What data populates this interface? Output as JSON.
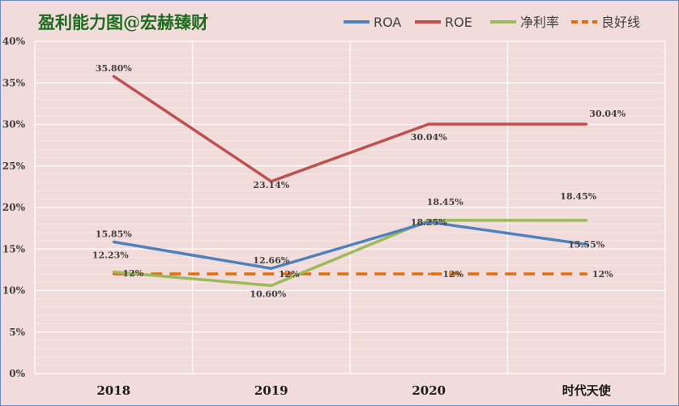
{
  "chart_data": {
    "type": "line",
    "title": "盈利能力图@宏赫臻财",
    "categories": [
      "2018",
      "2019",
      "2020",
      "时代天使"
    ],
    "ylim": [
      0,
      40
    ],
    "ytick_labels": [
      "0%",
      "5%",
      "10%",
      "15%",
      "20%",
      "25%",
      "30%",
      "35%",
      "40%"
    ],
    "grid": true,
    "legend_position": "top-right",
    "series": [
      {
        "name": "ROA",
        "color": "#4f81bd",
        "dashed": false,
        "values": [
          15.85,
          12.66,
          18.25,
          15.55
        ],
        "labels": [
          "15.85%",
          "12.66%",
          "18.25%",
          "15.55%"
        ]
      },
      {
        "name": "ROE",
        "color": "#c0504d",
        "dashed": false,
        "values": [
          35.8,
          23.14,
          30.04,
          30.04
        ],
        "labels": [
          "35.80%",
          "23.14%",
          "30.04%",
          "30.04%"
        ]
      },
      {
        "name": "净利率",
        "color": "#9bbb59",
        "dashed": false,
        "values": [
          12.23,
          10.6,
          18.45,
          18.45
        ],
        "labels": [
          "12.23%",
          "10.60%",
          "18.45%",
          "18.45%"
        ]
      },
      {
        "name": "良好线",
        "color": "#e46c0a",
        "dashed": true,
        "values": [
          12,
          12,
          12,
          12
        ],
        "labels": [
          "12%",
          "12%",
          "12%",
          "12%"
        ]
      }
    ]
  }
}
